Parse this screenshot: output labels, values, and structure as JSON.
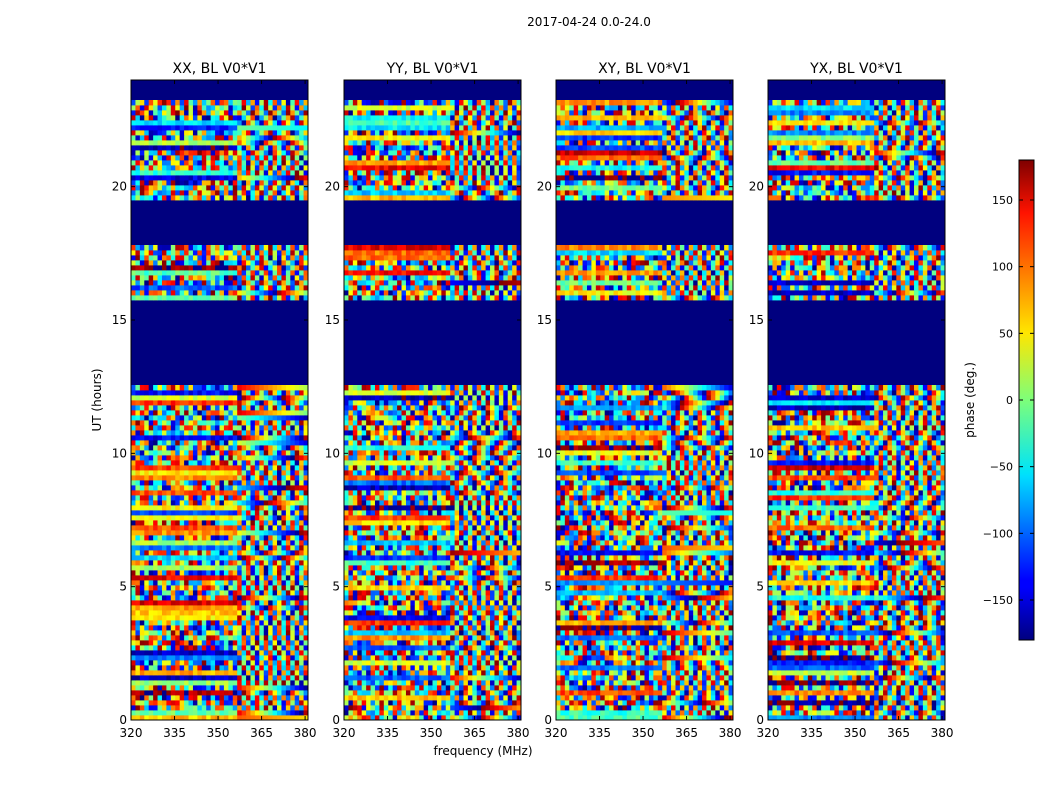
{
  "suptitle": "2017-04-24 0.0-24.0",
  "chart_data": {
    "type": "heatmap",
    "x_label": "frequency (MHz)",
    "y_label": "UT (hours)",
    "xlim": [
      320,
      381
    ],
    "ylim": [
      0,
      24
    ],
    "x_ticks": [
      320,
      335,
      350,
      365,
      380
    ],
    "y_ticks": [
      0,
      5,
      10,
      15,
      20
    ],
    "colorbar": {
      "label": "phase (deg.)",
      "range": [
        -180,
        180
      ],
      "ticks": [
        -150,
        -100,
        -50,
        0,
        50,
        100,
        150
      ],
      "tick_labels": [
        "−150",
        "−100",
        "−50",
        "0",
        "50",
        "100",
        "150"
      ],
      "colormap": "jet"
    },
    "panels": [
      {
        "title": "XX, BL V0*V1"
      },
      {
        "title": "YY, BL V0*V1"
      },
      {
        "title": "XY, BL V0*V1"
      },
      {
        "title": "YX, BL V0*V1"
      }
    ],
    "masked_ut_ranges": [
      [
        23.2,
        24.0
      ],
      [
        17.8,
        19.5
      ],
      [
        12.6,
        15.8
      ]
    ]
  },
  "colors": {
    "masked": "#00007f",
    "frame": "#000000"
  }
}
